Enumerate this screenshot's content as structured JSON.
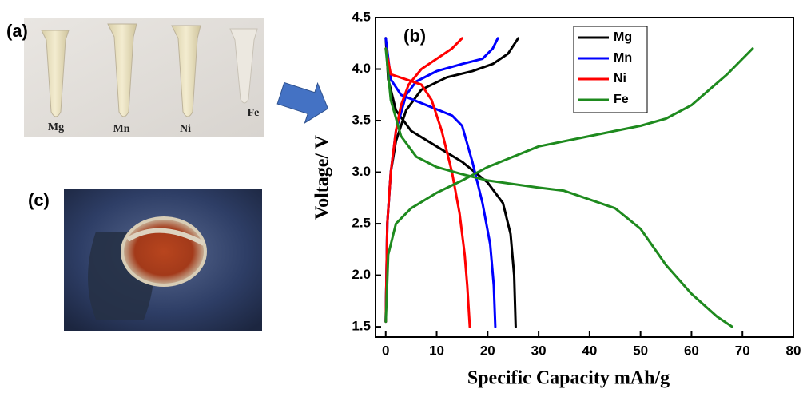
{
  "panels": {
    "a": "(a)",
    "c": "(c)"
  },
  "photo_labels": [
    "Mg",
    "Mn",
    "Ni",
    "Fe"
  ],
  "chart_data": {
    "type": "line",
    "panel_label": "(b)",
    "x_label": "Specific Capacity mAh/g",
    "y_label": "Voltage/ V",
    "xlim": [
      -2,
      80
    ],
    "ylim": [
      1.4,
      4.5
    ],
    "xticks": [
      0,
      10,
      20,
      30,
      40,
      50,
      60,
      70,
      80
    ],
    "yticks": [
      1.5,
      {
        "value": 2,
        "label": "2.0"
      },
      2.5,
      {
        "value": 3,
        "label": "3.0"
      },
      3.5,
      {
        "value": 4,
        "label": "4.0"
      },
      4.5
    ],
    "legend": "upper right",
    "grid": false,
    "series": [
      {
        "name": "Mg",
        "color": "#000000",
        "x": [
          0,
          0.5,
          2,
          5,
          10,
          15,
          20,
          23,
          24.5,
          25.2,
          25.5,
          null,
          0,
          0.3,
          1,
          2,
          4,
          7,
          12,
          17,
          21,
          24,
          26
        ],
        "values": [
          4.3,
          3.9,
          3.6,
          3.4,
          3.25,
          3.1,
          2.9,
          2.7,
          2.4,
          2.0,
          1.5,
          null,
          1.55,
          2.5,
          3.0,
          3.3,
          3.6,
          3.8,
          3.92,
          3.98,
          4.05,
          4.15,
          4.3
        ]
      },
      {
        "name": "Mn",
        "color": "#0000ff",
        "x": [
          0,
          1,
          3,
          8,
          13,
          15,
          17,
          19,
          20.5,
          21.2,
          21.5,
          null,
          0,
          0.3,
          1,
          2,
          4,
          6,
          10,
          15,
          19,
          21,
          22
        ],
        "values": [
          4.3,
          3.9,
          3.75,
          3.65,
          3.55,
          3.45,
          3.1,
          2.7,
          2.3,
          1.9,
          1.5,
          null,
          1.55,
          2.5,
          3.0,
          3.4,
          3.75,
          3.88,
          3.98,
          4.05,
          4.1,
          4.2,
          4.3
        ]
      },
      {
        "name": "Ni",
        "color": "#ff0000",
        "x": [
          0,
          1,
          4,
          7,
          9,
          11,
          13,
          14.5,
          15.5,
          16,
          16.5,
          null,
          0,
          0.3,
          1,
          2,
          3,
          4.5,
          7,
          10,
          13,
          15
        ],
        "values": [
          4.2,
          3.95,
          3.9,
          3.85,
          3.7,
          3.4,
          3.0,
          2.6,
          2.2,
          1.9,
          1.5,
          null,
          1.55,
          2.5,
          3.0,
          3.4,
          3.65,
          3.85,
          4.0,
          4.1,
          4.2,
          4.3
        ]
      },
      {
        "name": "Fe",
        "color": "#1e8a1e",
        "x": [
          0,
          1,
          3,
          6,
          10,
          15,
          20,
          30,
          35,
          45,
          50,
          55,
          60,
          65,
          68,
          null,
          0,
          0.5,
          2,
          5,
          10,
          15,
          20,
          30,
          40,
          45,
          50,
          55,
          60,
          67,
          72
        ],
        "values": [
          4.2,
          3.7,
          3.35,
          3.15,
          3.05,
          2.98,
          2.92,
          2.85,
          2.82,
          2.65,
          2.45,
          2.1,
          1.82,
          1.6,
          1.5,
          null,
          1.55,
          2.2,
          2.5,
          2.65,
          2.8,
          2.92,
          3.05,
          3.25,
          3.35,
          3.4,
          3.45,
          3.52,
          3.65,
          3.95,
          4.2
        ]
      }
    ]
  }
}
